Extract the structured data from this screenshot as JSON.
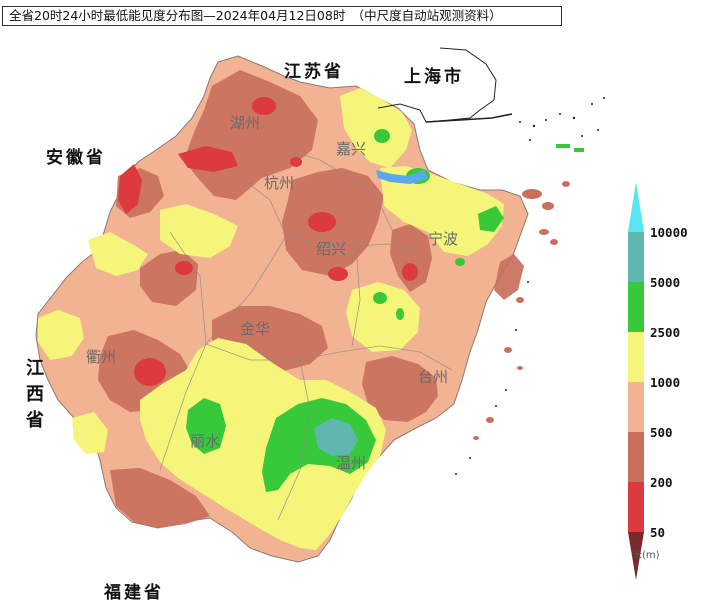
{
  "title": "全省20时24小时最低能见度分布图—2024年04月12日08时　（中尺度自动站观测资料）",
  "provinces": {
    "jiangsu": "江苏省",
    "shanghai": "上海市",
    "anhui": "安徽省",
    "jiangxi": "江西省",
    "fujian": "福建省"
  },
  "cities": {
    "huzhou": "湖州",
    "jiaxing": "嘉兴",
    "hangzhou": "杭州",
    "shaoxing": "绍兴",
    "ningbo": "宁波",
    "jinhua": "金华",
    "quzhou": "衢州",
    "taizhou": "台州",
    "lishui": "丽水",
    "wenzhou": "温州"
  },
  "legend": {
    "unit": "米(m)",
    "ticks": [
      "10000",
      "5000",
      "2500",
      "1000",
      "500",
      "200",
      "50"
    ],
    "bins": [
      {
        "range": "5000-10000",
        "color": "#5fb8b0"
      },
      {
        "range": "2500-5000",
        "color": "#38c93a"
      },
      {
        "range": "1000-2500",
        "color": "#f5f57a"
      },
      {
        "range": "500-1000",
        "color": "#f2b393"
      },
      {
        "range": "200-500",
        "color": "#c9705c"
      },
      {
        "range": "50-200",
        "color": "#dc3a3f"
      }
    ],
    "top_arrow_color": "#57e6ef",
    "bottom_arrow_color": "#7a2a2a"
  },
  "colors": {
    "water": "#5aa9ef"
  }
}
